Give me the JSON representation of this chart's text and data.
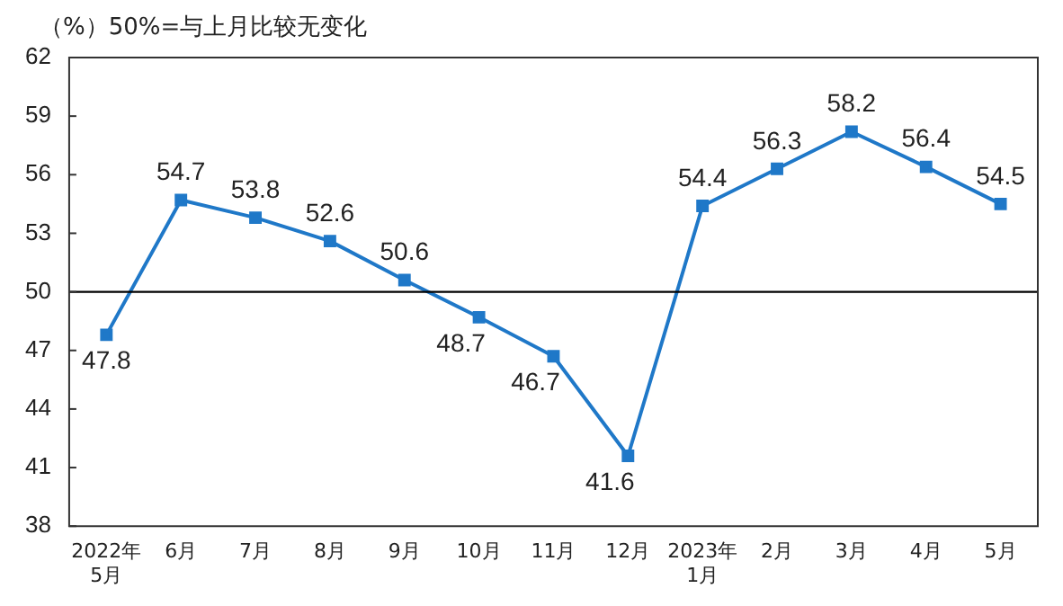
{
  "chart_data": {
    "type": "line",
    "title": "（%）50%=与上月比较无变化",
    "categories": [
      "2022年\n5月",
      "6月",
      "7月",
      "8月",
      "9月",
      "10月",
      "11月",
      "12月",
      "2023年\n1月",
      "2月",
      "3月",
      "4月",
      "5月"
    ],
    "series": [
      {
        "color": "#1f78c8",
        "values": [
          47.8,
          54.7,
          53.8,
          52.6,
          50.6,
          48.7,
          46.7,
          41.6,
          54.4,
          56.3,
          58.2,
          56.4,
          54.5
        ]
      }
    ],
    "ylim": [
      38,
      62
    ],
    "yticks": [
      38,
      41,
      44,
      47,
      50,
      53,
      56,
      59,
      62
    ],
    "ref_lines": [
      {
        "axis": "y",
        "value": 50,
        "color": "#000000"
      }
    ],
    "grid": false,
    "legend": false,
    "marker": "square",
    "line_style": "solid",
    "data_labels": true
  }
}
